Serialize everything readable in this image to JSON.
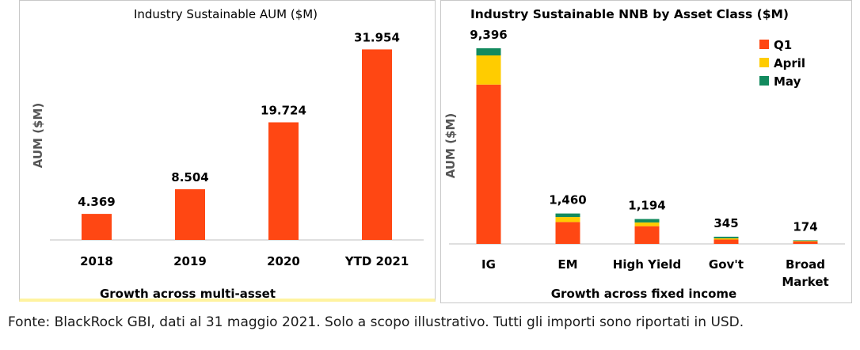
{
  "colors": {
    "bar": "#ff4713",
    "q1": "#ff4713",
    "april": "#ffcc00",
    "may": "#128a5e",
    "axis": "#bfbfbf"
  },
  "chart_data": [
    {
      "type": "bar",
      "title": "Industry Sustainable AUM ($M)",
      "ylabel": "AUM ($M)",
      "footer": "Growth across multi-asset",
      "categories": [
        "2018",
        "2019",
        "2020",
        "YTD 2021"
      ],
      "values": [
        4.369,
        8.504,
        19.724,
        31.954
      ],
      "value_labels": [
        "4.369",
        "8.504",
        "19.724",
        "31.954"
      ],
      "ylim": [
        0,
        34
      ],
      "grid": false
    },
    {
      "type": "bar",
      "stacked": true,
      "title": "Industry Sustainable NNB by Asset Class ($M)",
      "ylabel": "AUM ($M)",
      "footer": "Growth across fixed income",
      "categories": [
        "IG",
        "EM",
        "High Yield",
        "Gov't",
        "Broad Market"
      ],
      "category_lines": [
        [
          "IG"
        ],
        [
          "EM"
        ],
        [
          "High Yield"
        ],
        [
          "Gov't"
        ],
        [
          "Broad",
          "Market"
        ]
      ],
      "series": [
        {
          "name": "Q1",
          "values": [
            7650,
            1050,
            850,
            210,
            120
          ]
        },
        {
          "name": "April",
          "values": [
            1400,
            240,
            180,
            60,
            35
          ]
        },
        {
          "name": "May",
          "values": [
            346,
            170,
            164,
            75,
            19
          ]
        }
      ],
      "totals": [
        9396,
        1460,
        1194,
        345,
        174
      ],
      "total_labels": [
        "9,396",
        "1,460",
        "1,194",
        "345",
        "174"
      ],
      "legend_position": "top-right",
      "ylim": [
        0,
        10000
      ],
      "grid": false
    }
  ],
  "source_note": "Fonte: BlackRock GBI, dati al 31 maggio 2021. Solo a scopo illustrativo. Tutti gli importi sono riportati in USD."
}
